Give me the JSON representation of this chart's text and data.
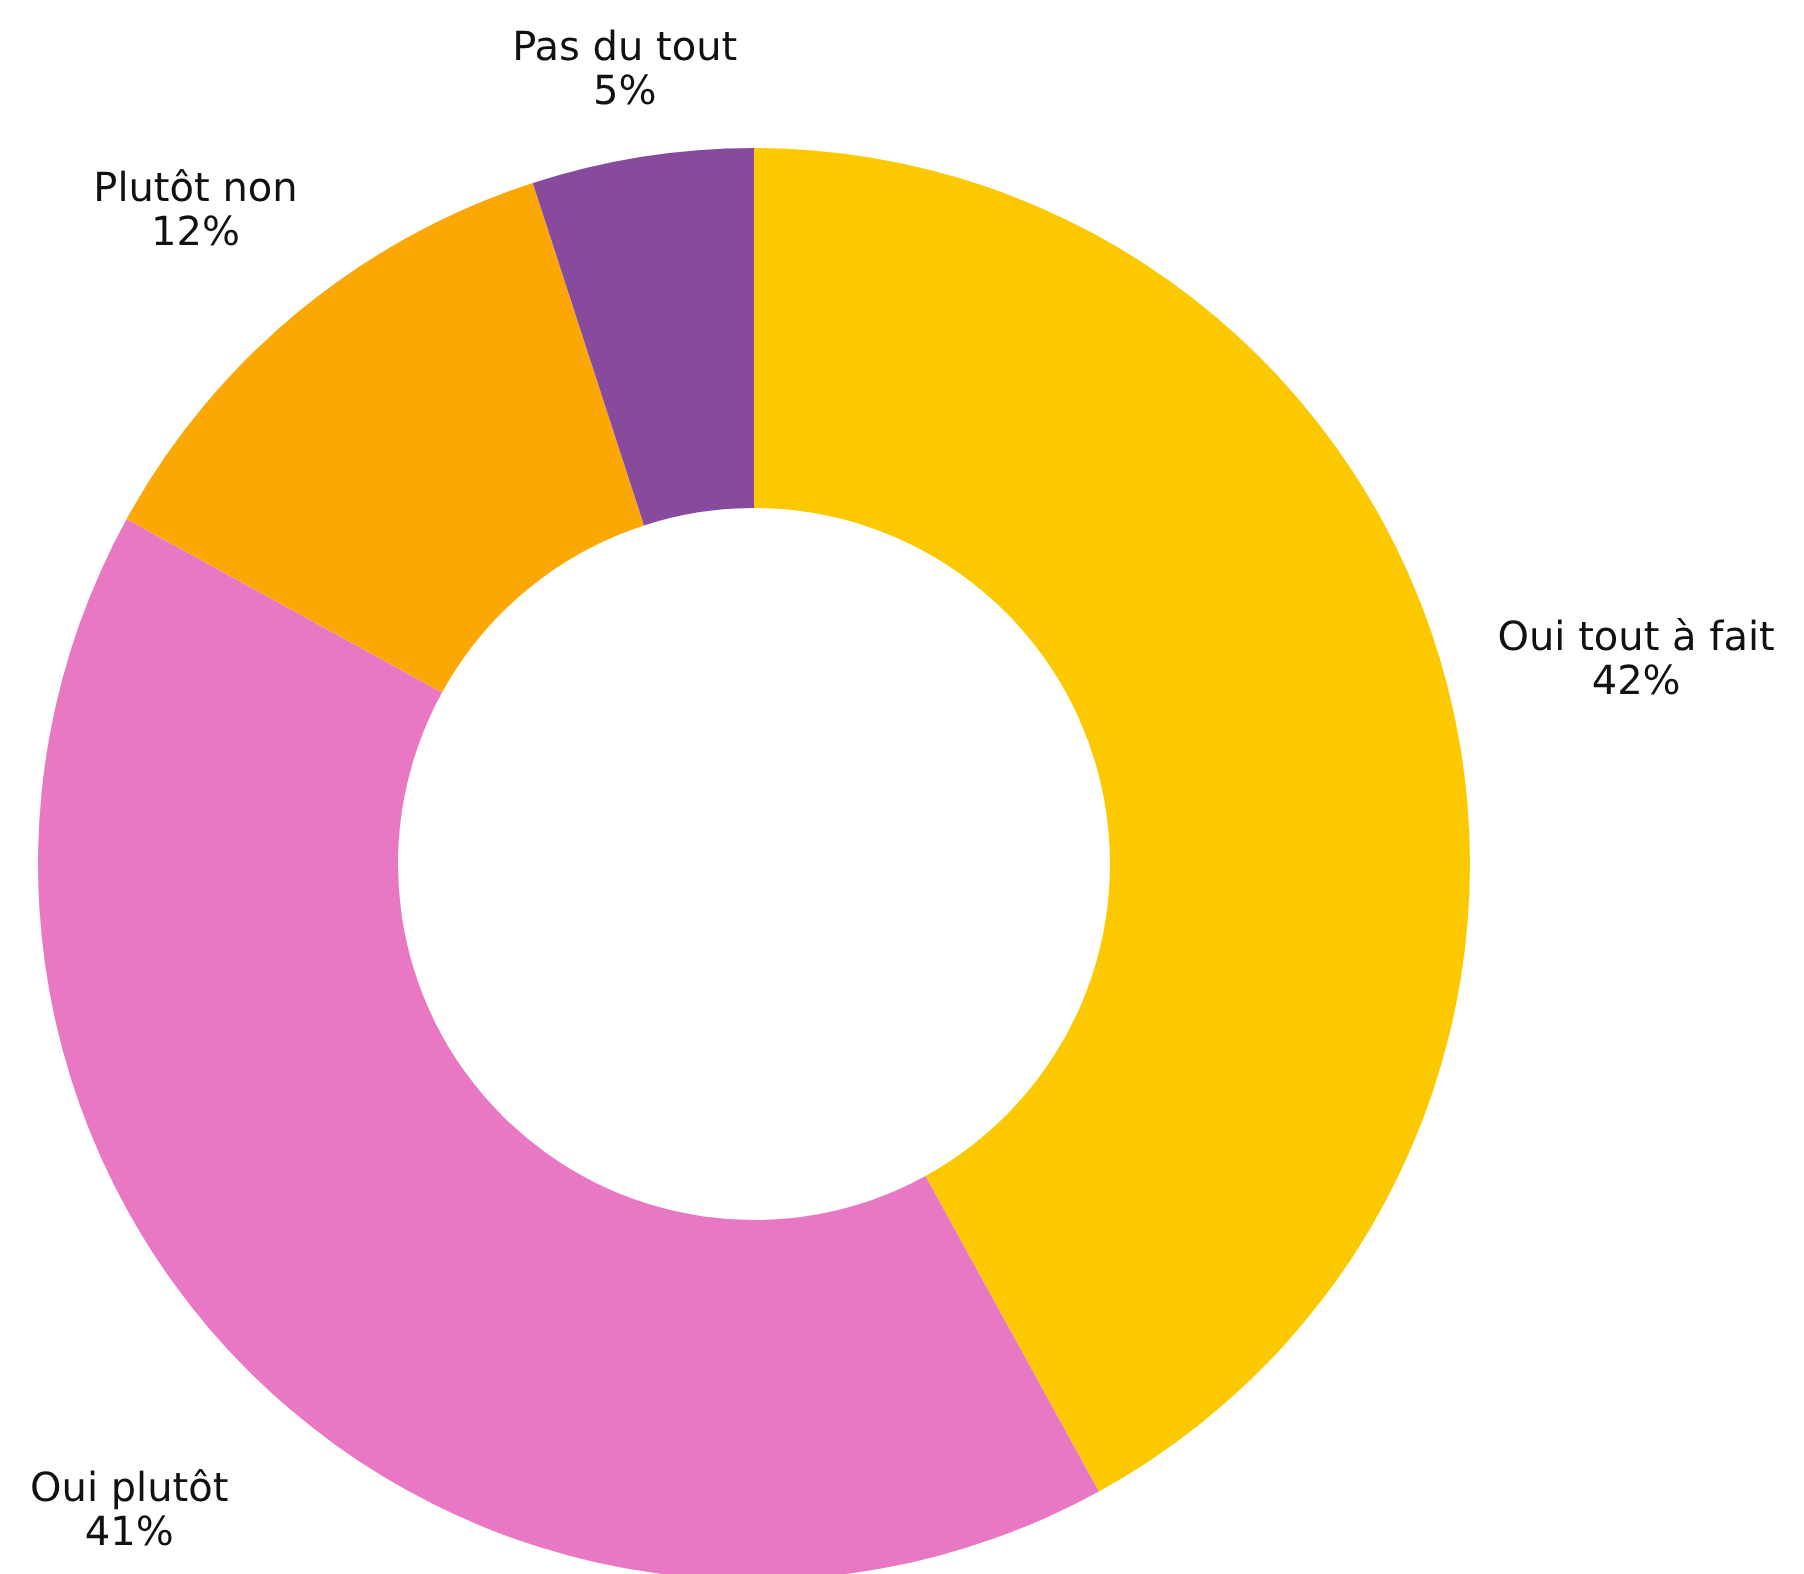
{
  "chart_data": {
    "type": "donut",
    "categories": [
      "Oui tout à fait",
      "Oui plutôt",
      "Plutôt non",
      "Pas du tout"
    ],
    "values": [
      42,
      41,
      12,
      5
    ],
    "value_labels": [
      "42%",
      "41%",
      "12%",
      "5%"
    ],
    "colors": [
      "#fcc900",
      "#e878c4",
      "#fba805",
      "#874a9c"
    ]
  }
}
